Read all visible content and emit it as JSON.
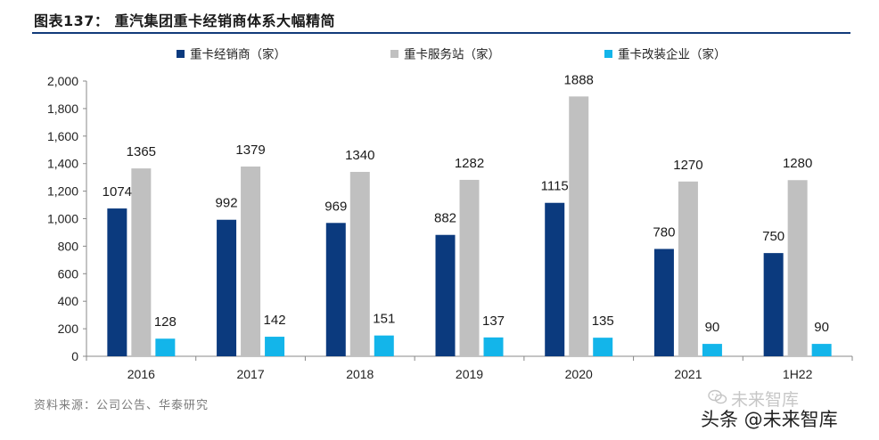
{
  "header": {
    "title": "图表137：  重汽集团重卡经销商体系大幅精简"
  },
  "chart_data": {
    "type": "bar",
    "title": "重汽集团重卡经销商体系大幅精简",
    "categories": [
      "2016",
      "2017",
      "2018",
      "2019",
      "2020",
      "2021",
      "1H22"
    ],
    "series": [
      {
        "name": "重卡经销商（家）",
        "color": "#0b3a7e",
        "values": [
          1074,
          992,
          969,
          882,
          1115,
          780,
          750
        ]
      },
      {
        "name": "重卡服务站（家）",
        "color": "#c0c0c0",
        "values": [
          1365,
          1379,
          1340,
          1282,
          1888,
          1270,
          1280
        ]
      },
      {
        "name": "重卡改装企业（家）",
        "color": "#13b5ea",
        "values": [
          128,
          142,
          151,
          137,
          135,
          90,
          90
        ]
      }
    ],
    "ylim": [
      0,
      2000
    ],
    "yticks": [
      0,
      200,
      400,
      600,
      800,
      1000,
      1200,
      1400,
      1600,
      1800,
      2000
    ],
    "ytick_labels": [
      "0",
      "200",
      "400",
      "600",
      "800",
      "1,000",
      "1,200",
      "1,400",
      "1,600",
      "1,800",
      "2,000"
    ],
    "xlabel": "",
    "ylabel": "",
    "legend_position": "top"
  },
  "footer": {
    "source": "资料来源：公司公告、华泰研究",
    "watermark_top": "未来智库",
    "watermark_main": "头条 @未来智库"
  }
}
